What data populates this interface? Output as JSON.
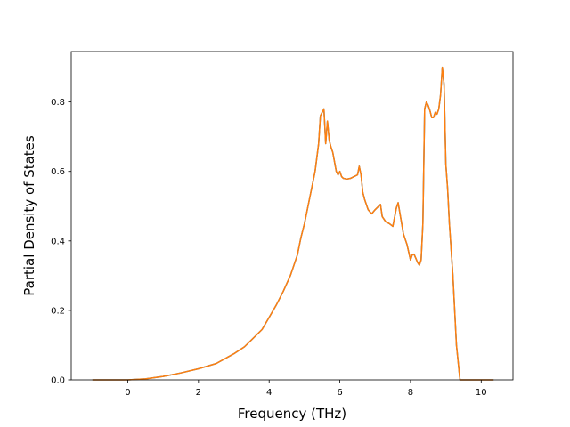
{
  "chart_data": {
    "type": "line",
    "title": "",
    "xlabel": "Frequency (THz)",
    "ylabel": "Partial Density of States",
    "xlim": [
      -1.6,
      10.9
    ],
    "ylim": [
      0.0,
      0.945
    ],
    "xticks": [
      0,
      2,
      4,
      6,
      8,
      10
    ],
    "yticks": [
      0.0,
      0.2,
      0.4,
      0.6,
      0.8
    ],
    "xtick_labels": [
      "0",
      "2",
      "4",
      "6",
      "8",
      "10"
    ],
    "ytick_labels": [
      "0.0",
      "0.2",
      "0.4",
      "0.6",
      "0.8"
    ],
    "grid": false,
    "legend": "none",
    "series": [
      {
        "color": "#1f77b4",
        "x": [
          -1.0,
          0.0,
          0.5,
          1.0,
          1.5,
          2.0,
          2.5,
          3.0,
          3.3,
          3.5,
          3.8,
          4.0,
          4.2,
          4.4,
          4.6,
          4.8,
          4.9,
          5.0,
          5.1,
          5.2,
          5.3,
          5.4,
          5.45,
          5.55,
          5.6,
          5.65,
          5.7,
          5.75,
          5.8,
          5.9,
          5.95,
          6.0,
          6.05,
          6.1,
          6.2,
          6.3,
          6.4,
          6.5,
          6.55,
          6.6,
          6.65,
          6.7,
          6.8,
          6.9,
          7.0,
          7.1,
          7.15,
          7.2,
          7.3,
          7.4,
          7.5,
          7.6,
          7.65,
          7.7,
          7.8,
          7.9,
          8.0,
          8.05,
          8.1,
          8.15,
          8.2,
          8.25,
          8.3,
          8.35,
          8.4,
          8.45,
          8.5,
          8.55,
          8.6,
          8.65,
          8.7,
          8.75,
          8.8,
          8.85,
          8.9,
          8.95,
          9.0,
          9.05,
          9.1,
          9.2,
          9.3,
          9.4,
          9.45,
          10.0,
          10.35
        ],
        "y": [
          0.0,
          0.0,
          0.003,
          0.01,
          0.02,
          0.032,
          0.047,
          0.075,
          0.095,
          0.115,
          0.145,
          0.18,
          0.215,
          0.255,
          0.3,
          0.36,
          0.41,
          0.45,
          0.5,
          0.55,
          0.6,
          0.68,
          0.76,
          0.78,
          0.68,
          0.745,
          0.69,
          0.67,
          0.655,
          0.6,
          0.59,
          0.6,
          0.585,
          0.58,
          0.578,
          0.58,
          0.585,
          0.59,
          0.615,
          0.59,
          0.54,
          0.52,
          0.49,
          0.478,
          0.49,
          0.5,
          0.505,
          0.47,
          0.455,
          0.45,
          0.442,
          0.495,
          0.51,
          0.48,
          0.42,
          0.39,
          0.345,
          0.36,
          0.362,
          0.35,
          0.338,
          0.33,
          0.345,
          0.45,
          0.78,
          0.8,
          0.79,
          0.775,
          0.755,
          0.755,
          0.77,
          0.765,
          0.78,
          0.82,
          0.9,
          0.85,
          0.62,
          0.55,
          0.45,
          0.3,
          0.1,
          0.0,
          0.0,
          0.0,
          0.0
        ]
      },
      {
        "color": "#ff7f0e",
        "x": [
          -1.0,
          0.0,
          0.5,
          1.0,
          1.5,
          2.0,
          2.5,
          3.0,
          3.3,
          3.5,
          3.8,
          4.0,
          4.2,
          4.4,
          4.6,
          4.8,
          4.9,
          5.0,
          5.1,
          5.2,
          5.3,
          5.4,
          5.45,
          5.55,
          5.6,
          5.65,
          5.7,
          5.75,
          5.8,
          5.9,
          5.95,
          6.0,
          6.05,
          6.1,
          6.2,
          6.3,
          6.4,
          6.5,
          6.55,
          6.6,
          6.65,
          6.7,
          6.8,
          6.9,
          7.0,
          7.1,
          7.15,
          7.2,
          7.3,
          7.4,
          7.5,
          7.6,
          7.65,
          7.7,
          7.8,
          7.9,
          8.0,
          8.05,
          8.1,
          8.15,
          8.2,
          8.25,
          8.3,
          8.35,
          8.4,
          8.45,
          8.5,
          8.55,
          8.6,
          8.65,
          8.7,
          8.75,
          8.8,
          8.85,
          8.9,
          8.95,
          9.0,
          9.05,
          9.1,
          9.2,
          9.3,
          9.4,
          9.45,
          10.0,
          10.35
        ],
        "y": [
          0.0,
          0.0,
          0.003,
          0.01,
          0.02,
          0.032,
          0.047,
          0.075,
          0.095,
          0.115,
          0.145,
          0.18,
          0.215,
          0.255,
          0.3,
          0.36,
          0.41,
          0.45,
          0.5,
          0.55,
          0.6,
          0.68,
          0.76,
          0.78,
          0.68,
          0.745,
          0.69,
          0.67,
          0.655,
          0.6,
          0.59,
          0.6,
          0.585,
          0.58,
          0.578,
          0.58,
          0.585,
          0.59,
          0.615,
          0.59,
          0.54,
          0.52,
          0.49,
          0.478,
          0.49,
          0.5,
          0.505,
          0.47,
          0.455,
          0.45,
          0.442,
          0.495,
          0.51,
          0.48,
          0.42,
          0.39,
          0.345,
          0.36,
          0.362,
          0.35,
          0.338,
          0.33,
          0.345,
          0.45,
          0.78,
          0.8,
          0.79,
          0.775,
          0.755,
          0.755,
          0.77,
          0.765,
          0.78,
          0.82,
          0.9,
          0.85,
          0.62,
          0.55,
          0.45,
          0.3,
          0.1,
          0.0,
          0.0,
          0.0,
          0.0
        ]
      }
    ]
  }
}
